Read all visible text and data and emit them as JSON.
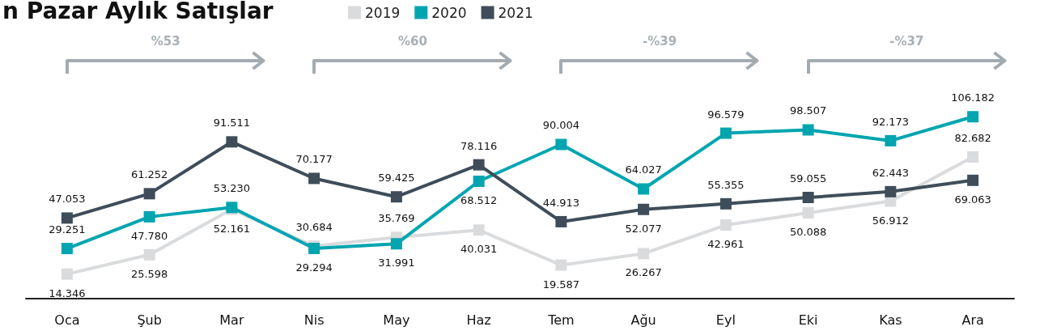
{
  "chart_data": {
    "type": "line",
    "title": "n Pazar Aylık Satışlar",
    "categories": [
      "Oca",
      "Şub",
      "Mar",
      "Nis",
      "May",
      "Haz",
      "Tem",
      "Ağu",
      "Eyl",
      "Eki",
      "Kas",
      "Ara"
    ],
    "series": [
      {
        "name": "2019",
        "color": "#d9dbdd",
        "values": [
          14346,
          25598,
          52161,
          30684,
          35769,
          40031,
          19587,
          26267,
          42961,
          50088,
          56912,
          82682
        ],
        "value_labels": [
          "14.346",
          "25.598",
          "52.161",
          "30.684",
          "35.769",
          "40.031",
          "19.587",
          "26.267",
          "42.961",
          "50.088",
          "56.912",
          "82.682"
        ]
      },
      {
        "name": "2020",
        "color": "#00a5b0",
        "values": [
          29251,
          47780,
          53230,
          29294,
          31991,
          68512,
          90004,
          64027,
          96579,
          98507,
          92173,
          106182
        ],
        "value_labels": [
          "29.251",
          "47.780",
          "53.230",
          "29.294",
          "31.991",
          "68.512",
          "90.004",
          "64.027",
          "96.579",
          "98.507",
          "92.173",
          "106.182"
        ]
      },
      {
        "name": "2021",
        "color": "#3f4d5a",
        "values": [
          47053,
          61252,
          91511,
          70177,
          59425,
          78116,
          44913,
          52077,
          55355,
          59055,
          62443,
          69063
        ],
        "value_labels": [
          "47.053",
          "61.252",
          "91.511",
          "70.177",
          "59.425",
          "78.116",
          "44.913",
          "52.077",
          "55.355",
          "59.055",
          "62.443",
          "69.063"
        ]
      }
    ],
    "annotations": [
      "%53",
      "%60",
      "-%39",
      "-%37"
    ],
    "marker": "square",
    "legend": "top",
    "grid": false
  }
}
